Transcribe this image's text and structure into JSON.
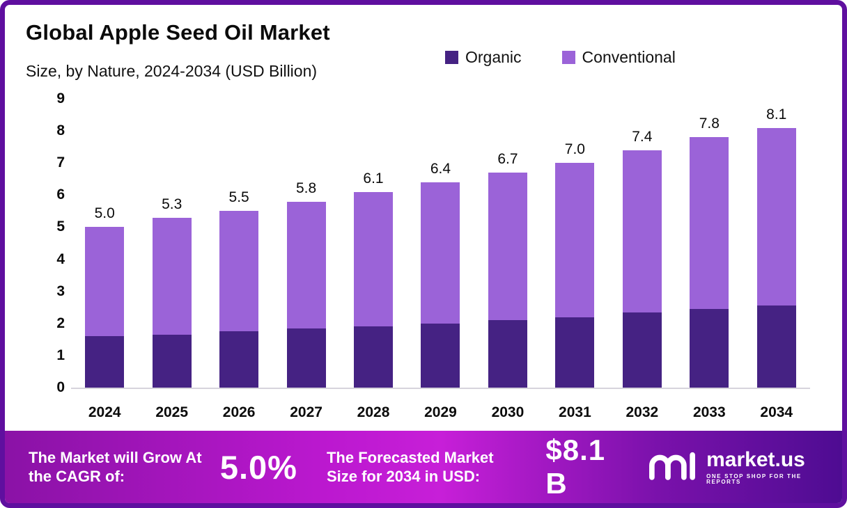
{
  "header": {
    "title": "Global Apple Seed Oil Market",
    "subtitle": "Size, by Nature, 2024-2034 (USD Billion)"
  },
  "legend": [
    {
      "label": "Organic",
      "color": "#452283"
    },
    {
      "label": "Conventional",
      "color": "#9b63d8"
    }
  ],
  "chart_data": {
    "type": "bar",
    "stacked": true,
    "title": "Global Apple Seed Oil Market Size, by Nature, 2024-2034 (USD Billion)",
    "categories": [
      "2024",
      "2025",
      "2026",
      "2027",
      "2028",
      "2029",
      "2030",
      "2031",
      "2032",
      "2033",
      "2034"
    ],
    "series": [
      {
        "name": "Organic",
        "color": "#452283",
        "values": [
          1.6,
          1.65,
          1.75,
          1.85,
          1.9,
          2.0,
          2.1,
          2.2,
          2.35,
          2.45,
          2.55
        ]
      },
      {
        "name": "Conventional",
        "color": "#9b63d8",
        "values": [
          3.4,
          3.65,
          3.75,
          3.95,
          4.2,
          4.4,
          4.6,
          4.8,
          5.05,
          5.35,
          5.55
        ]
      }
    ],
    "total_labels": [
      "5.0",
      "5.3",
      "5.5",
      "5.8",
      "6.1",
      "6.4",
      "6.7",
      "7.0",
      "7.4",
      "7.8",
      "8.1"
    ],
    "ylim": [
      0,
      9
    ],
    "yticks": [
      0,
      1,
      2,
      3,
      4,
      5,
      6,
      7,
      8,
      9
    ],
    "grid": false,
    "legend_position": "top"
  },
  "footer": {
    "cagr_label": "The Market will Grow At the CAGR of:",
    "cagr_value": "5.0%",
    "forecast_label": "The Forecasted Market Size for 2034 in USD:",
    "forecast_value": "$8.1 B",
    "brand_name": "market.us",
    "brand_tagline": "ONE STOP SHOP FOR THE REPORTS"
  },
  "colors": {
    "organic": "#452283",
    "conventional": "#9b63d8",
    "border": "#5f0f9f",
    "baseline": "#d6d3dc"
  }
}
